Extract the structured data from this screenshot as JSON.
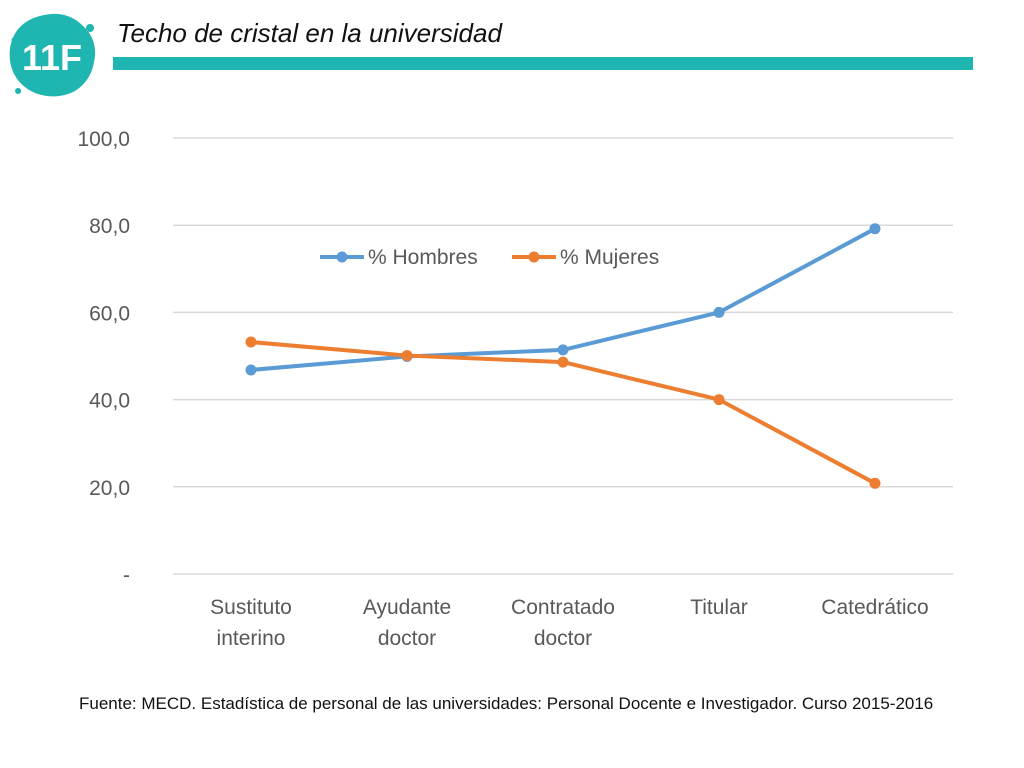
{
  "header": {
    "logo_text": "11F",
    "title": "Techo de cristal en la universidad"
  },
  "colors": {
    "accent": "#1fb5b0",
    "hombres": "#5b9bd5",
    "mujeres": "#ed7d31",
    "grid": "#d9d9d9",
    "axis_text": "#595959"
  },
  "chart_data": {
    "type": "line",
    "categories": [
      [
        "Sustituto",
        "interino"
      ],
      [
        "Ayudante",
        "doctor"
      ],
      [
        "Contratado",
        "doctor"
      ],
      [
        "Titular"
      ],
      [
        "Catedrático"
      ]
    ],
    "series": [
      {
        "name": "% Hombres",
        "values": [
          46.8,
          49.9,
          51.4,
          60.0,
          79.2
        ]
      },
      {
        "name": "% Mujeres",
        "values": [
          53.2,
          50.1,
          48.6,
          40.0,
          20.8
        ]
      }
    ],
    "yticks": [
      "-",
      "20,0",
      "40,0",
      "60,0",
      "80,0",
      "100,0"
    ],
    "ylim": [
      0,
      100
    ],
    "grid": true,
    "legend_position": "top-center",
    "xlabel": "",
    "ylabel": ""
  },
  "footer": {
    "source": "Fuente: MECD. Estadística de personal de las universidades: Personal Docente e Investigador. Curso 2015-2016"
  }
}
